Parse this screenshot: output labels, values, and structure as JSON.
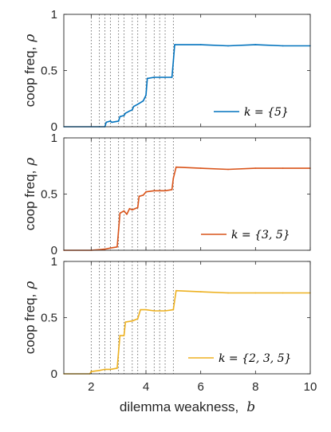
{
  "chart_data": [
    {
      "type": "line",
      "panel": "top",
      "ylabel": "coop freq,",
      "ylabel_symbol": "ρ",
      "xlabel": "",
      "xlim": [
        1,
        10
      ],
      "ylim": [
        0,
        1
      ],
      "yticks": [
        "0",
        "0.5",
        "1"
      ],
      "xticks": [],
      "vlines": [
        2.0,
        2.3,
        2.5,
        2.7,
        3.0,
        3.2,
        3.5,
        3.7,
        4.0,
        4.3,
        4.5,
        4.7,
        5.0
      ],
      "grid": false,
      "legend_position": "lower-right",
      "series": [
        {
          "name": "k = {5}",
          "color": "#0072BD",
          "points": [
            [
              1.0,
              0
            ],
            [
              2.3,
              0
            ],
            [
              2.5,
              0
            ],
            [
              2.55,
              0.04
            ],
            [
              2.7,
              0.05
            ],
            [
              2.75,
              0.04
            ],
            [
              3.0,
              0.05
            ],
            [
              3.05,
              0.09
            ],
            [
              3.2,
              0.1
            ],
            [
              3.25,
              0.12
            ],
            [
              3.4,
              0.14
            ],
            [
              3.5,
              0.15
            ],
            [
              3.55,
              0.18
            ],
            [
              3.7,
              0.2
            ],
            [
              3.9,
              0.23
            ],
            [
              4.0,
              0.28
            ],
            [
              4.05,
              0.43
            ],
            [
              4.3,
              0.44
            ],
            [
              4.5,
              0.44
            ],
            [
              4.7,
              0.44
            ],
            [
              4.95,
              0.44
            ],
            [
              5.0,
              0.58
            ],
            [
              5.05,
              0.73
            ],
            [
              6.0,
              0.73
            ],
            [
              7.0,
              0.72
            ],
            [
              8.0,
              0.73
            ],
            [
              9.0,
              0.72
            ],
            [
              10.0,
              0.72
            ]
          ]
        }
      ]
    },
    {
      "type": "line",
      "panel": "middle",
      "ylabel": "coop freq,",
      "ylabel_symbol": "ρ",
      "xlabel": "",
      "xlim": [
        1,
        10
      ],
      "ylim": [
        0,
        1
      ],
      "yticks": [
        "0",
        "0.5",
        "1"
      ],
      "xticks": [],
      "vlines": [
        2.0,
        2.3,
        2.5,
        2.7,
        3.0,
        3.2,
        3.5,
        3.7,
        4.0,
        4.3,
        4.5,
        4.7,
        5.0
      ],
      "grid": false,
      "legend_position": "lower-right",
      "series": [
        {
          "name": "k = {3, 5}",
          "color": "#D95319",
          "points": [
            [
              1.0,
              0
            ],
            [
              2.0,
              0
            ],
            [
              2.5,
              0.01
            ],
            [
              2.7,
              0.02
            ],
            [
              2.95,
              0.03
            ],
            [
              3.0,
              0.18
            ],
            [
              3.05,
              0.33
            ],
            [
              3.2,
              0.35
            ],
            [
              3.3,
              0.32
            ],
            [
              3.4,
              0.37
            ],
            [
              3.5,
              0.36
            ],
            [
              3.7,
              0.38
            ],
            [
              3.75,
              0.48
            ],
            [
              3.9,
              0.49
            ],
            [
              4.0,
              0.52
            ],
            [
              4.3,
              0.53
            ],
            [
              4.5,
              0.53
            ],
            [
              4.7,
              0.53
            ],
            [
              4.95,
              0.54
            ],
            [
              5.0,
              0.64
            ],
            [
              5.1,
              0.74
            ],
            [
              6.0,
              0.73
            ],
            [
              7.0,
              0.72
            ],
            [
              8.0,
              0.73
            ],
            [
              9.0,
              0.73
            ],
            [
              10.0,
              0.73
            ]
          ]
        }
      ]
    },
    {
      "type": "line",
      "panel": "bottom",
      "ylabel": "coop freq,",
      "ylabel_symbol": "ρ",
      "xlabel": "dilemma weakness,",
      "xlabel_symbol": "b",
      "xlim": [
        1,
        10
      ],
      "ylim": [
        0,
        1
      ],
      "yticks": [
        "0",
        "0.5",
        "1"
      ],
      "xticks": [
        "2",
        "4",
        "6",
        "8",
        "10"
      ],
      "vlines": [
        2.0,
        2.3,
        2.5,
        2.7,
        3.0,
        3.2,
        3.5,
        3.7,
        4.0,
        4.3,
        4.5,
        4.7,
        5.0
      ],
      "grid": false,
      "legend_position": "lower-right",
      "series": [
        {
          "name": "k = {2, 3, 5}",
          "color": "#EDB120",
          "points": [
            [
              1.0,
              0
            ],
            [
              1.95,
              0
            ],
            [
              2.0,
              0.02
            ],
            [
              2.3,
              0.03
            ],
            [
              2.5,
              0.04
            ],
            [
              2.7,
              0.04
            ],
            [
              2.95,
              0.05
            ],
            [
              3.0,
              0.2
            ],
            [
              3.05,
              0.34
            ],
            [
              3.2,
              0.34
            ],
            [
              3.25,
              0.46
            ],
            [
              3.5,
              0.47
            ],
            [
              3.7,
              0.49
            ],
            [
              3.8,
              0.57
            ],
            [
              4.0,
              0.57
            ],
            [
              4.3,
              0.56
            ],
            [
              4.5,
              0.56
            ],
            [
              4.7,
              0.56
            ],
            [
              5.0,
              0.57
            ],
            [
              5.1,
              0.74
            ],
            [
              6.0,
              0.73
            ],
            [
              7.0,
              0.72
            ],
            [
              8.0,
              0.72
            ],
            [
              9.0,
              0.72
            ],
            [
              10.0,
              0.72
            ]
          ]
        }
      ]
    }
  ]
}
